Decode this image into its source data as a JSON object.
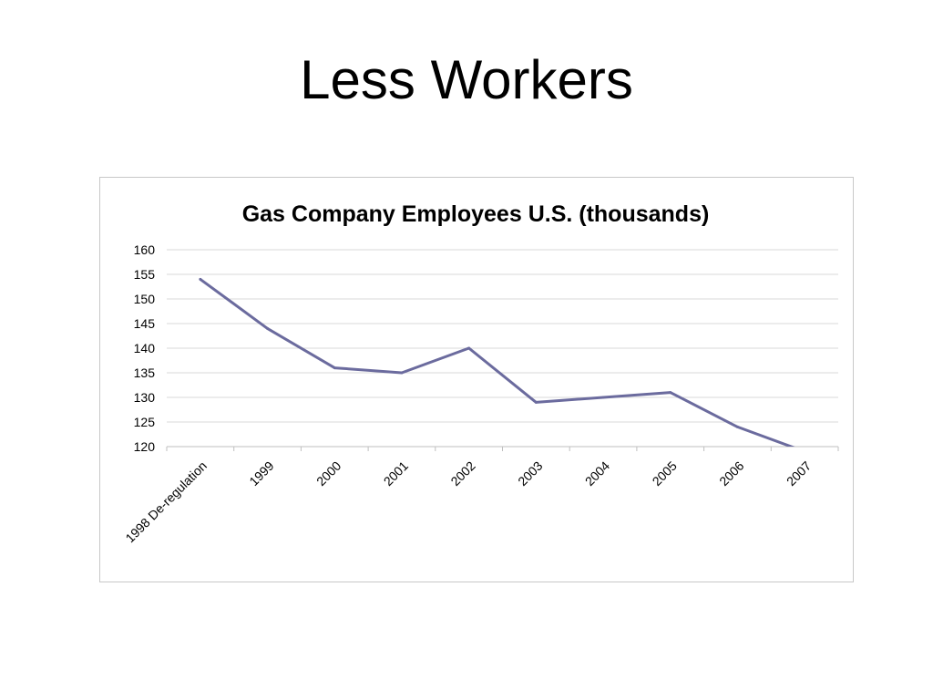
{
  "slide": {
    "title": "Less Workers"
  },
  "chart_data": {
    "type": "line",
    "title": "Gas Company Employees U.S. (thousands)",
    "xlabel": "",
    "ylabel": "",
    "categories": [
      "1998 De-regulation",
      "1999",
      "2000",
      "2001",
      "2002",
      "2003",
      "2004",
      "2005",
      "2006",
      "2007"
    ],
    "series": [
      {
        "values": [
          154,
          144,
          136,
          135,
          140,
          129,
          130,
          131,
          124,
          119
        ],
        "color": "#6b6b9e"
      }
    ],
    "ylim": [
      120,
      160
    ],
    "yticks": [
      160,
      155,
      150,
      145,
      140,
      135,
      130,
      125,
      120
    ],
    "grid": true,
    "legend": "none",
    "gridline_color": "#d9d9d9",
    "axis_color": "#bfbfbf"
  }
}
